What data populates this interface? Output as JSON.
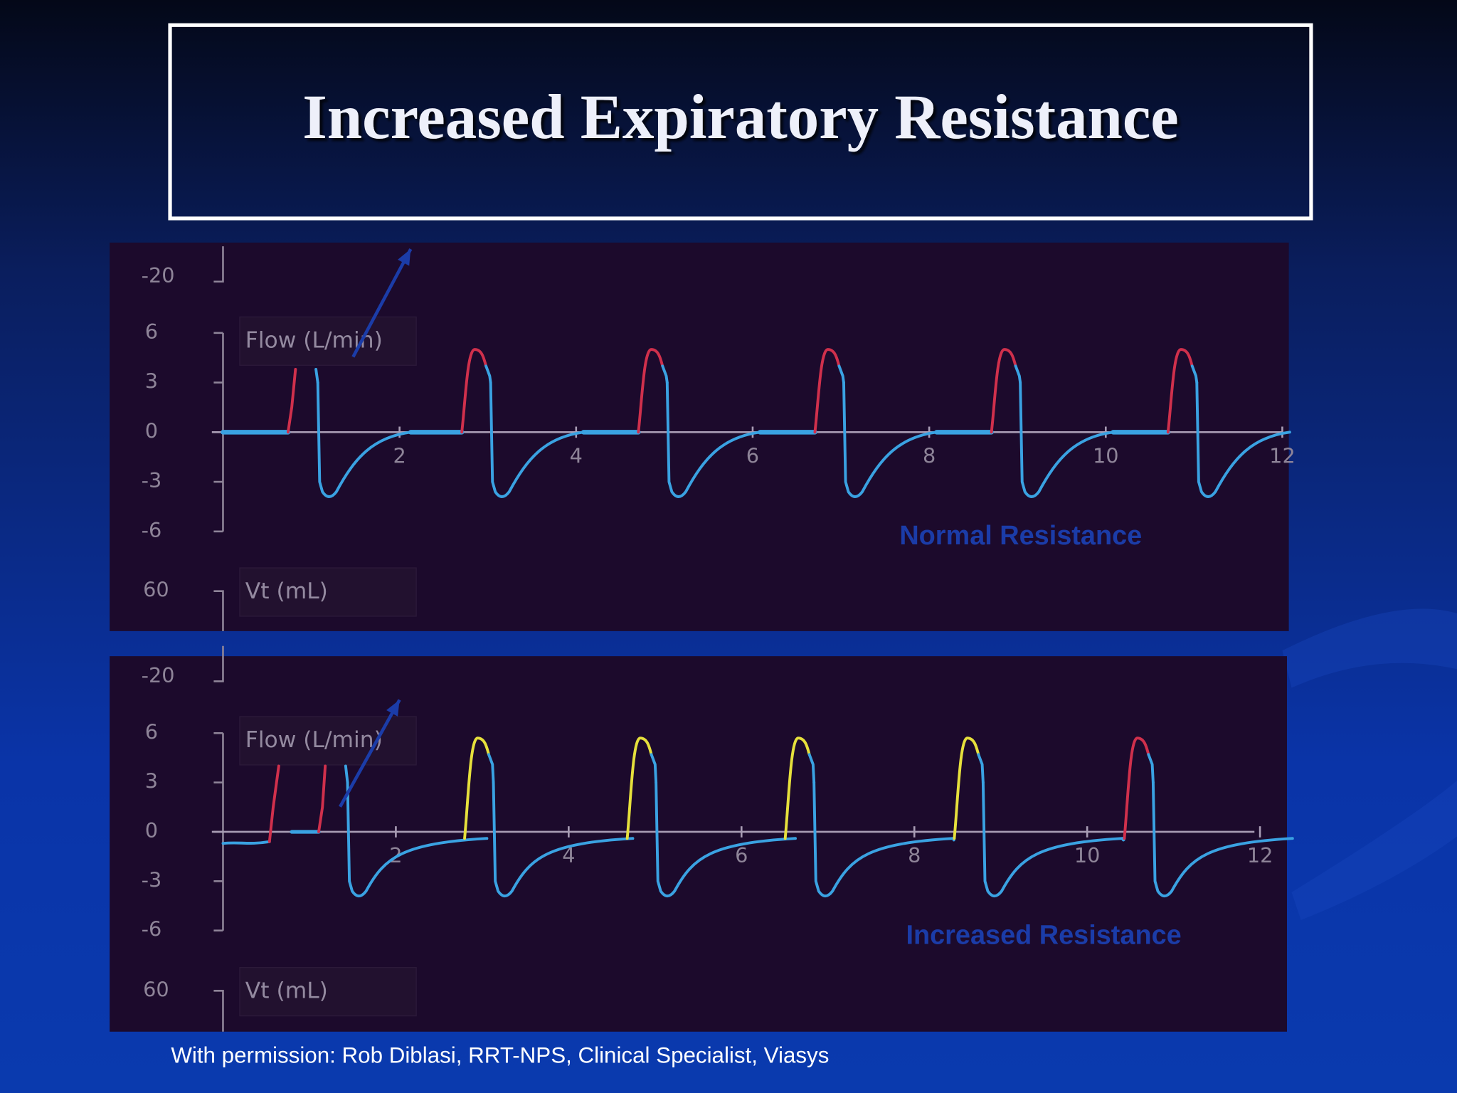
{
  "title": "Increased Expiratory Resistance",
  "panels": [
    {
      "top_scale": -20,
      "flow_label": "Flow (L/min)",
      "flow_ticks": [
        6,
        3,
        0,
        -3,
        -6
      ],
      "vt_label": "Vt (mL)",
      "vt_tick": 60,
      "x_ticks": [
        2,
        4,
        6,
        8,
        10,
        12
      ],
      "annotation": "Normal Resistance"
    },
    {
      "top_scale": -20,
      "flow_label": "Flow (L/min)",
      "flow_ticks": [
        6,
        3,
        0,
        -3,
        -6
      ],
      "vt_label": "Vt (mL)",
      "vt_tick": 60,
      "x_ticks": [
        2,
        4,
        6,
        8,
        10,
        12
      ],
      "annotation": "Increased Resistance"
    }
  ],
  "footer": "With permission: Rob Diblasi, RRT-NPS, Clinical Specialist, Viasys"
}
